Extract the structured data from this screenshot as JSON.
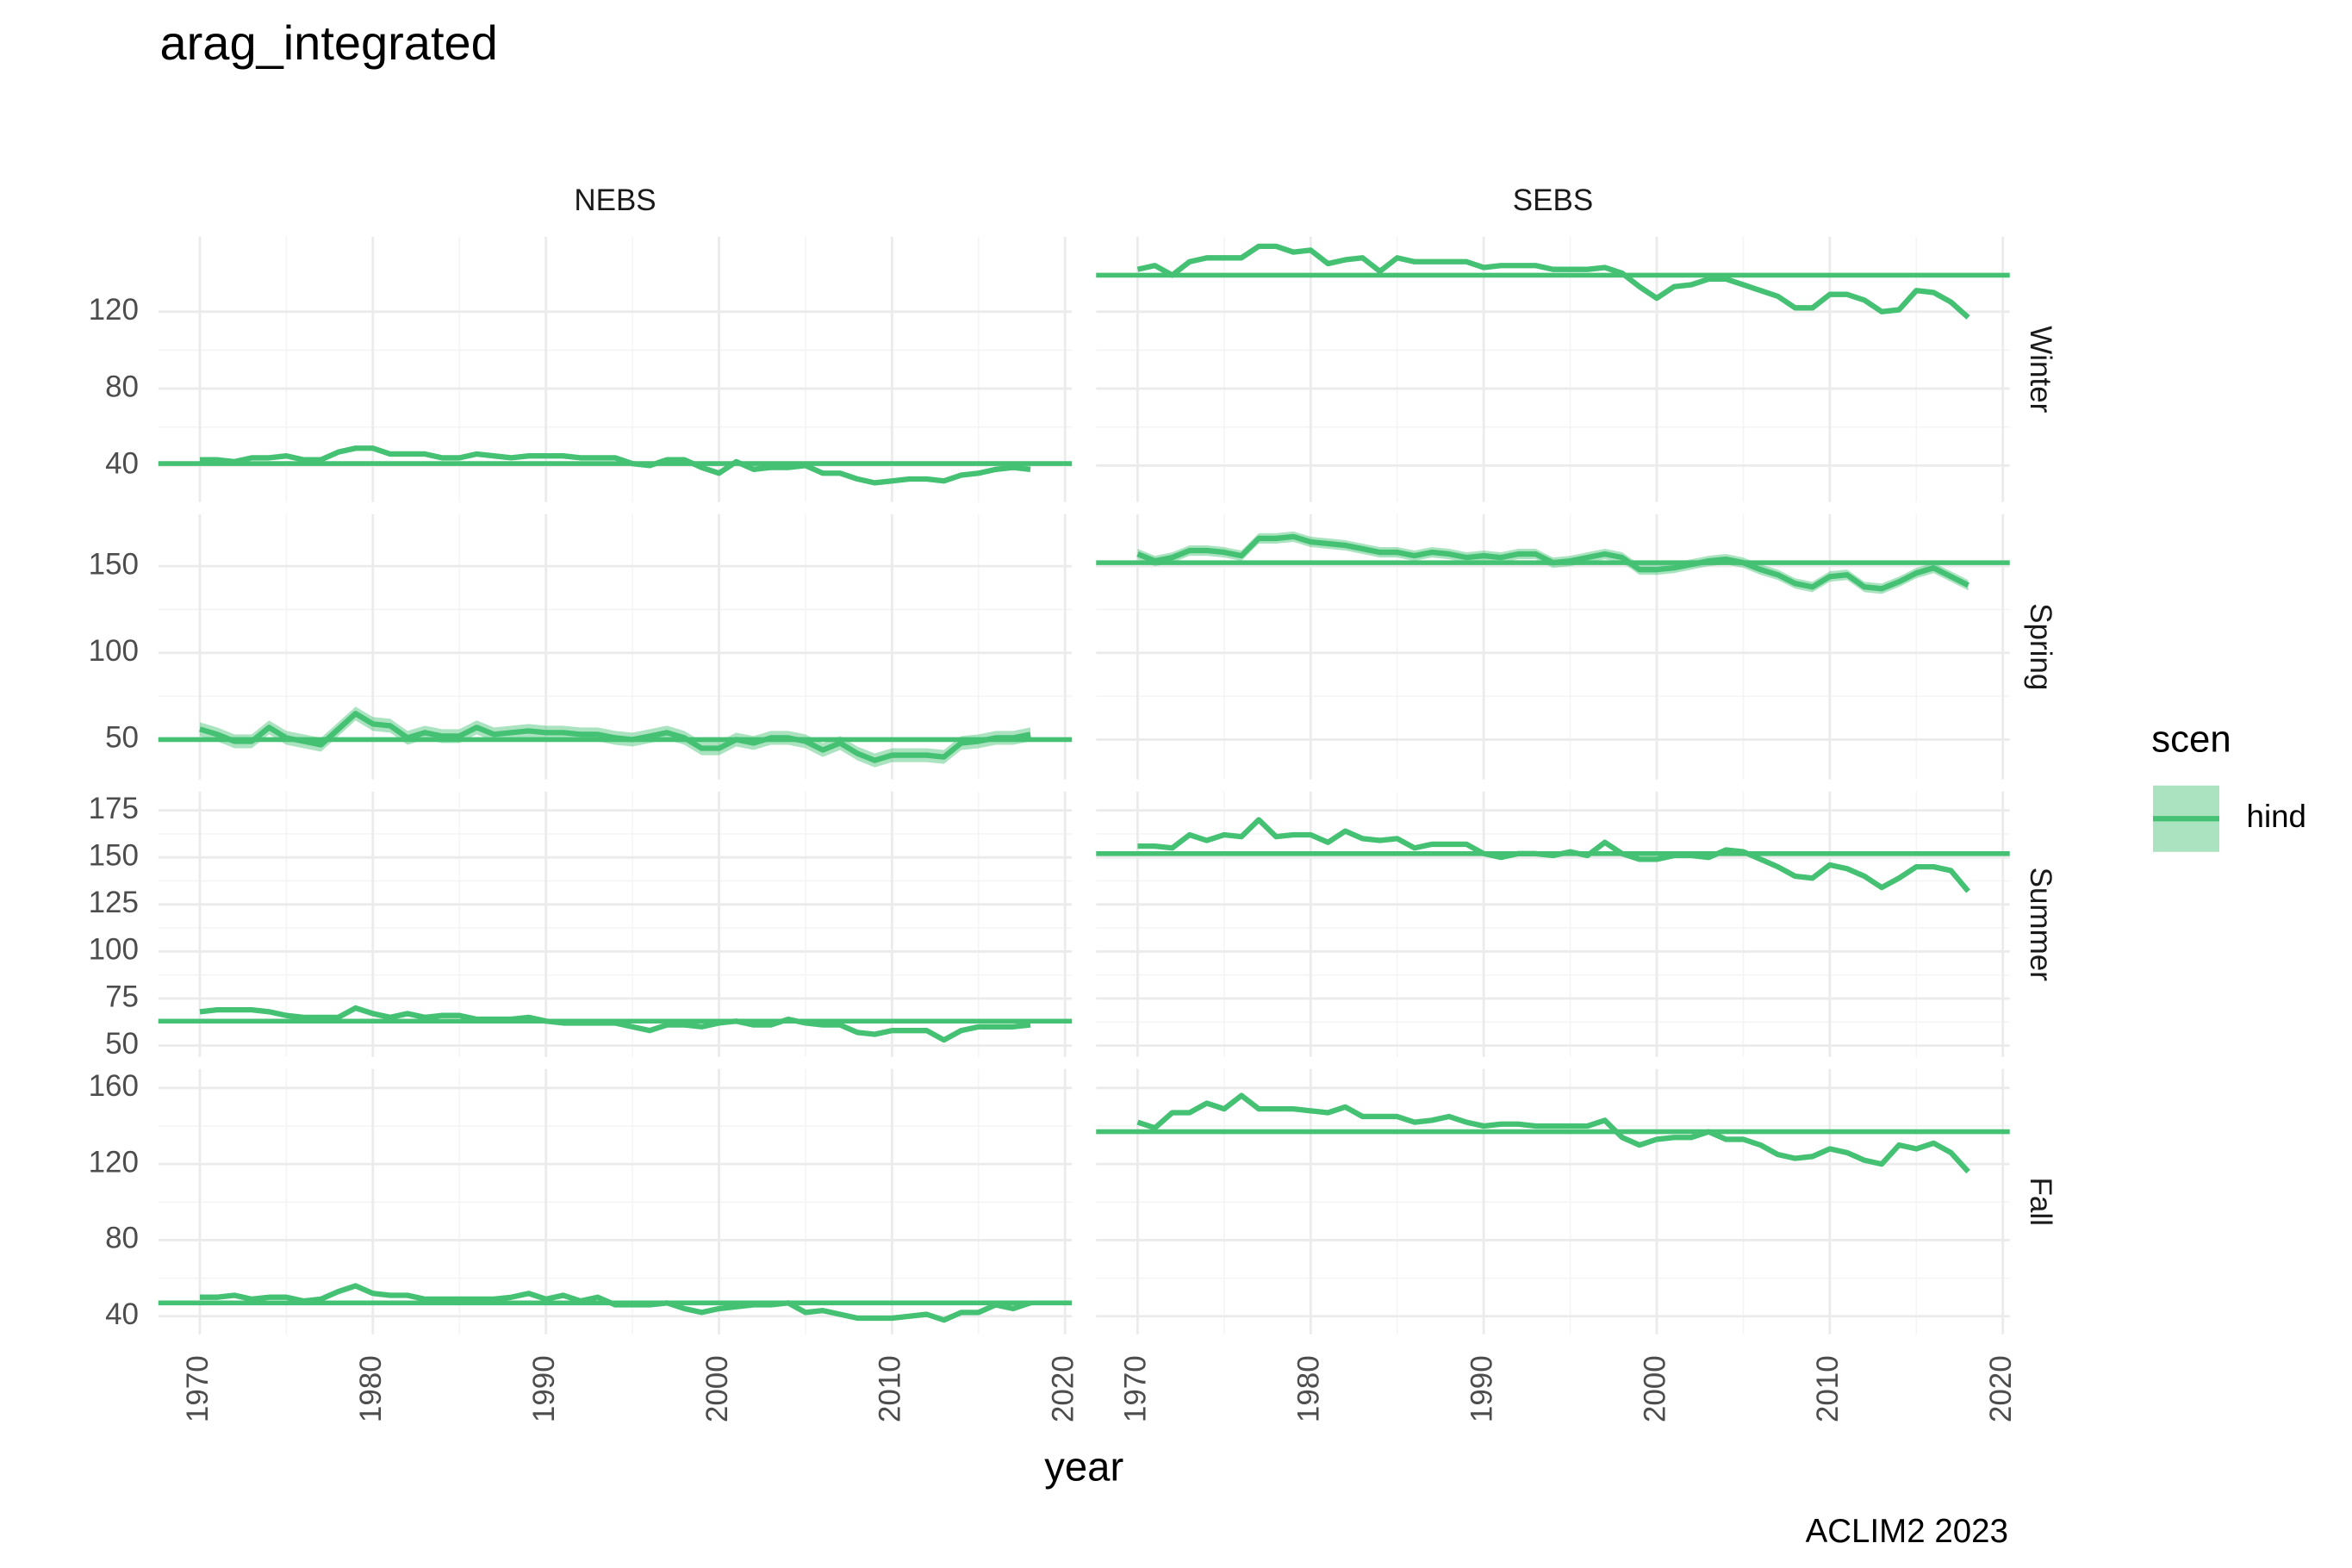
{
  "chart_data": {
    "type": "line",
    "title": "arag_integrated",
    "caption": "ACLIM2 2023",
    "x_label": "year",
    "facet_cols": [
      "NEBS",
      "SEBS"
    ],
    "facet_rows": [
      "Winter",
      "Spring",
      "Summer",
      "Fall"
    ],
    "legend": {
      "title": "scen",
      "position": "right"
    },
    "series": [
      {
        "name": "hind",
        "color": "#45c173"
      }
    ],
    "grid": true,
    "x": [
      1970,
      1971,
      1972,
      1973,
      1974,
      1975,
      1976,
      1977,
      1978,
      1979,
      1980,
      1981,
      1982,
      1983,
      1984,
      1985,
      1986,
      1987,
      1988,
      1989,
      1990,
      1991,
      1992,
      1993,
      1994,
      1995,
      1996,
      1997,
      1998,
      1999,
      2000,
      2001,
      2002,
      2003,
      2004,
      2005,
      2006,
      2007,
      2008,
      2009,
      2010,
      2011,
      2012,
      2013,
      2014,
      2015,
      2016,
      2017,
      2018
    ],
    "xlim": [
      1967.6,
      2020.4
    ],
    "xticks": [
      1970,
      1980,
      1990,
      2000,
      2010,
      2020
    ],
    "rows": [
      {
        "ylim": [
          21,
          159
        ],
        "yticks": [
          40,
          80,
          120
        ]
      },
      {
        "ylim": [
          27,
          180
        ],
        "yticks": [
          50,
          100,
          150
        ]
      },
      {
        "ylim": [
          44,
          185
        ],
        "yticks": [
          50,
          75,
          100,
          125,
          150,
          175
        ]
      },
      {
        "ylim": [
          30.5,
          170
        ],
        "yticks": [
          40,
          80,
          120,
          160
        ]
      }
    ],
    "panels": [
      {
        "mean": 41,
        "values": [
          43,
          43,
          42,
          44,
          44,
          45,
          43,
          43,
          47,
          49,
          49,
          46,
          46,
          46,
          44,
          44,
          46,
          45,
          44,
          45,
          45,
          45,
          44,
          44,
          44,
          41,
          40,
          43,
          43,
          39,
          36,
          42,
          38,
          39,
          39,
          40,
          36,
          36,
          33,
          31,
          32,
          33,
          33,
          32,
          35,
          36,
          38,
          39,
          38
        ]
      },
      {
        "mean": 139,
        "values": [
          142,
          144,
          139,
          146,
          148,
          148,
          148,
          154,
          154,
          151,
          152,
          145,
          147,
          148,
          141,
          148,
          146,
          146,
          146,
          146,
          143,
          144,
          144,
          144,
          142,
          142,
          142,
          143,
          140,
          133,
          127,
          133,
          134,
          137,
          137,
          134,
          131,
          128,
          122,
          122,
          129,
          129,
          126,
          120,
          121,
          131,
          130,
          125,
          117
        ]
      },
      {
        "mean": 50,
        "values": [
          56,
          53,
          49,
          49,
          57,
          51,
          49,
          47,
          56,
          65,
          59,
          58,
          51,
          54,
          52,
          52,
          57,
          53,
          54,
          55,
          54,
          54,
          53,
          53,
          51,
          50,
          52,
          54,
          51,
          45,
          45,
          50,
          48,
          51,
          51,
          49,
          44,
          48,
          42,
          38,
          41,
          41,
          41,
          40,
          48,
          49,
          51,
          51,
          53
        ],
        "lower": [
          52,
          49,
          45,
          45,
          53,
          47,
          45,
          43,
          52,
          61,
          55,
          54,
          47,
          50,
          48,
          48,
          53,
          49,
          50,
          51,
          50,
          50,
          49,
          49,
          47,
          46,
          48,
          50,
          47,
          41,
          41,
          46,
          44,
          47,
          47,
          45,
          40,
          44,
          38,
          34,
          37,
          37,
          37,
          36,
          44,
          45,
          47,
          47,
          49
        ],
        "upper": [
          60,
          57,
          53,
          53,
          61,
          55,
          53,
          51,
          60,
          69,
          63,
          62,
          55,
          58,
          56,
          56,
          61,
          57,
          58,
          59,
          58,
          58,
          57,
          57,
          55,
          54,
          56,
          58,
          55,
          49,
          49,
          54,
          52,
          55,
          55,
          53,
          48,
          52,
          46,
          42,
          45,
          45,
          45,
          44,
          52,
          53,
          55,
          55,
          57
        ]
      },
      {
        "mean": 152,
        "values": [
          157,
          153,
          155,
          159,
          159,
          158,
          156,
          166,
          166,
          167,
          164,
          163,
          162,
          160,
          158,
          158,
          156,
          158,
          157,
          155,
          156,
          155,
          157,
          157,
          152,
          153,
          155,
          157,
          155,
          148,
          148,
          149,
          151,
          153,
          154,
          152,
          148,
          145,
          140,
          138,
          144,
          145,
          138,
          137,
          141,
          146,
          149,
          144,
          139
        ],
        "lower": [
          154,
          150,
          152,
          156,
          156,
          155,
          153,
          163,
          163,
          164,
          161,
          160,
          159,
          157,
          155,
          155,
          153,
          155,
          154,
          152,
          153,
          152,
          154,
          154,
          149,
          150,
          152,
          154,
          152,
          145,
          145,
          146,
          148,
          150,
          151,
          149,
          145,
          142,
          137,
          135,
          141,
          142,
          135,
          134,
          138,
          143,
          146,
          141,
          136
        ],
        "upper": [
          160,
          156,
          158,
          162,
          162,
          161,
          159,
          169,
          169,
          170,
          167,
          166,
          165,
          163,
          161,
          161,
          159,
          161,
          160,
          158,
          159,
          158,
          160,
          160,
          155,
          156,
          158,
          160,
          158,
          151,
          151,
          152,
          154,
          156,
          157,
          155,
          151,
          148,
          143,
          141,
          147,
          148,
          141,
          140,
          144,
          149,
          152,
          147,
          142
        ]
      },
      {
        "mean": 63,
        "values": [
          68,
          69,
          69,
          69,
          68,
          66,
          65,
          65,
          65,
          70,
          67,
          65,
          67,
          65,
          66,
          66,
          64,
          64,
          64,
          65,
          63,
          62,
          62,
          62,
          62,
          60,
          58,
          61,
          61,
          60,
          62,
          63,
          61,
          61,
          64,
          62,
          61,
          61,
          57,
          56,
          58,
          58,
          58,
          53,
          58,
          60,
          60,
          60,
          61
        ]
      },
      {
        "mean": 152,
        "values": [
          156,
          156,
          155,
          162,
          159,
          162,
          161,
          170,
          161,
          162,
          162,
          158,
          164,
          160,
          159,
          160,
          155,
          157,
          157,
          157,
          152,
          150,
          152,
          152,
          151,
          153,
          151,
          158,
          152,
          149,
          149,
          151,
          151,
          150,
          154,
          153,
          149,
          145,
          140,
          139,
          146,
          144,
          140,
          134,
          139,
          145,
          145,
          143,
          132
        ]
      },
      {
        "mean": 47,
        "values": [
          50,
          50,
          51,
          49,
          50,
          50,
          48,
          49,
          53,
          56,
          52,
          51,
          51,
          49,
          49,
          49,
          49,
          49,
          50,
          52,
          49,
          51,
          48,
          50,
          46,
          46,
          46,
          47,
          44,
          42,
          44,
          45,
          46,
          46,
          47,
          42,
          43,
          41,
          39,
          39,
          39,
          40,
          41,
          38,
          42,
          42,
          46,
          44,
          47
        ]
      },
      {
        "mean": 137,
        "values": [
          142,
          139,
          147,
          147,
          152,
          149,
          156,
          149,
          149,
          149,
          148,
          147,
          150,
          145,
          145,
          145,
          142,
          143,
          145,
          142,
          140,
          141,
          141,
          140,
          140,
          140,
          140,
          143,
          134,
          130,
          133,
          134,
          134,
          137,
          133,
          133,
          130,
          125,
          123,
          124,
          128,
          126,
          122,
          120,
          130,
          128,
          131,
          126,
          116
        ]
      }
    ]
  }
}
